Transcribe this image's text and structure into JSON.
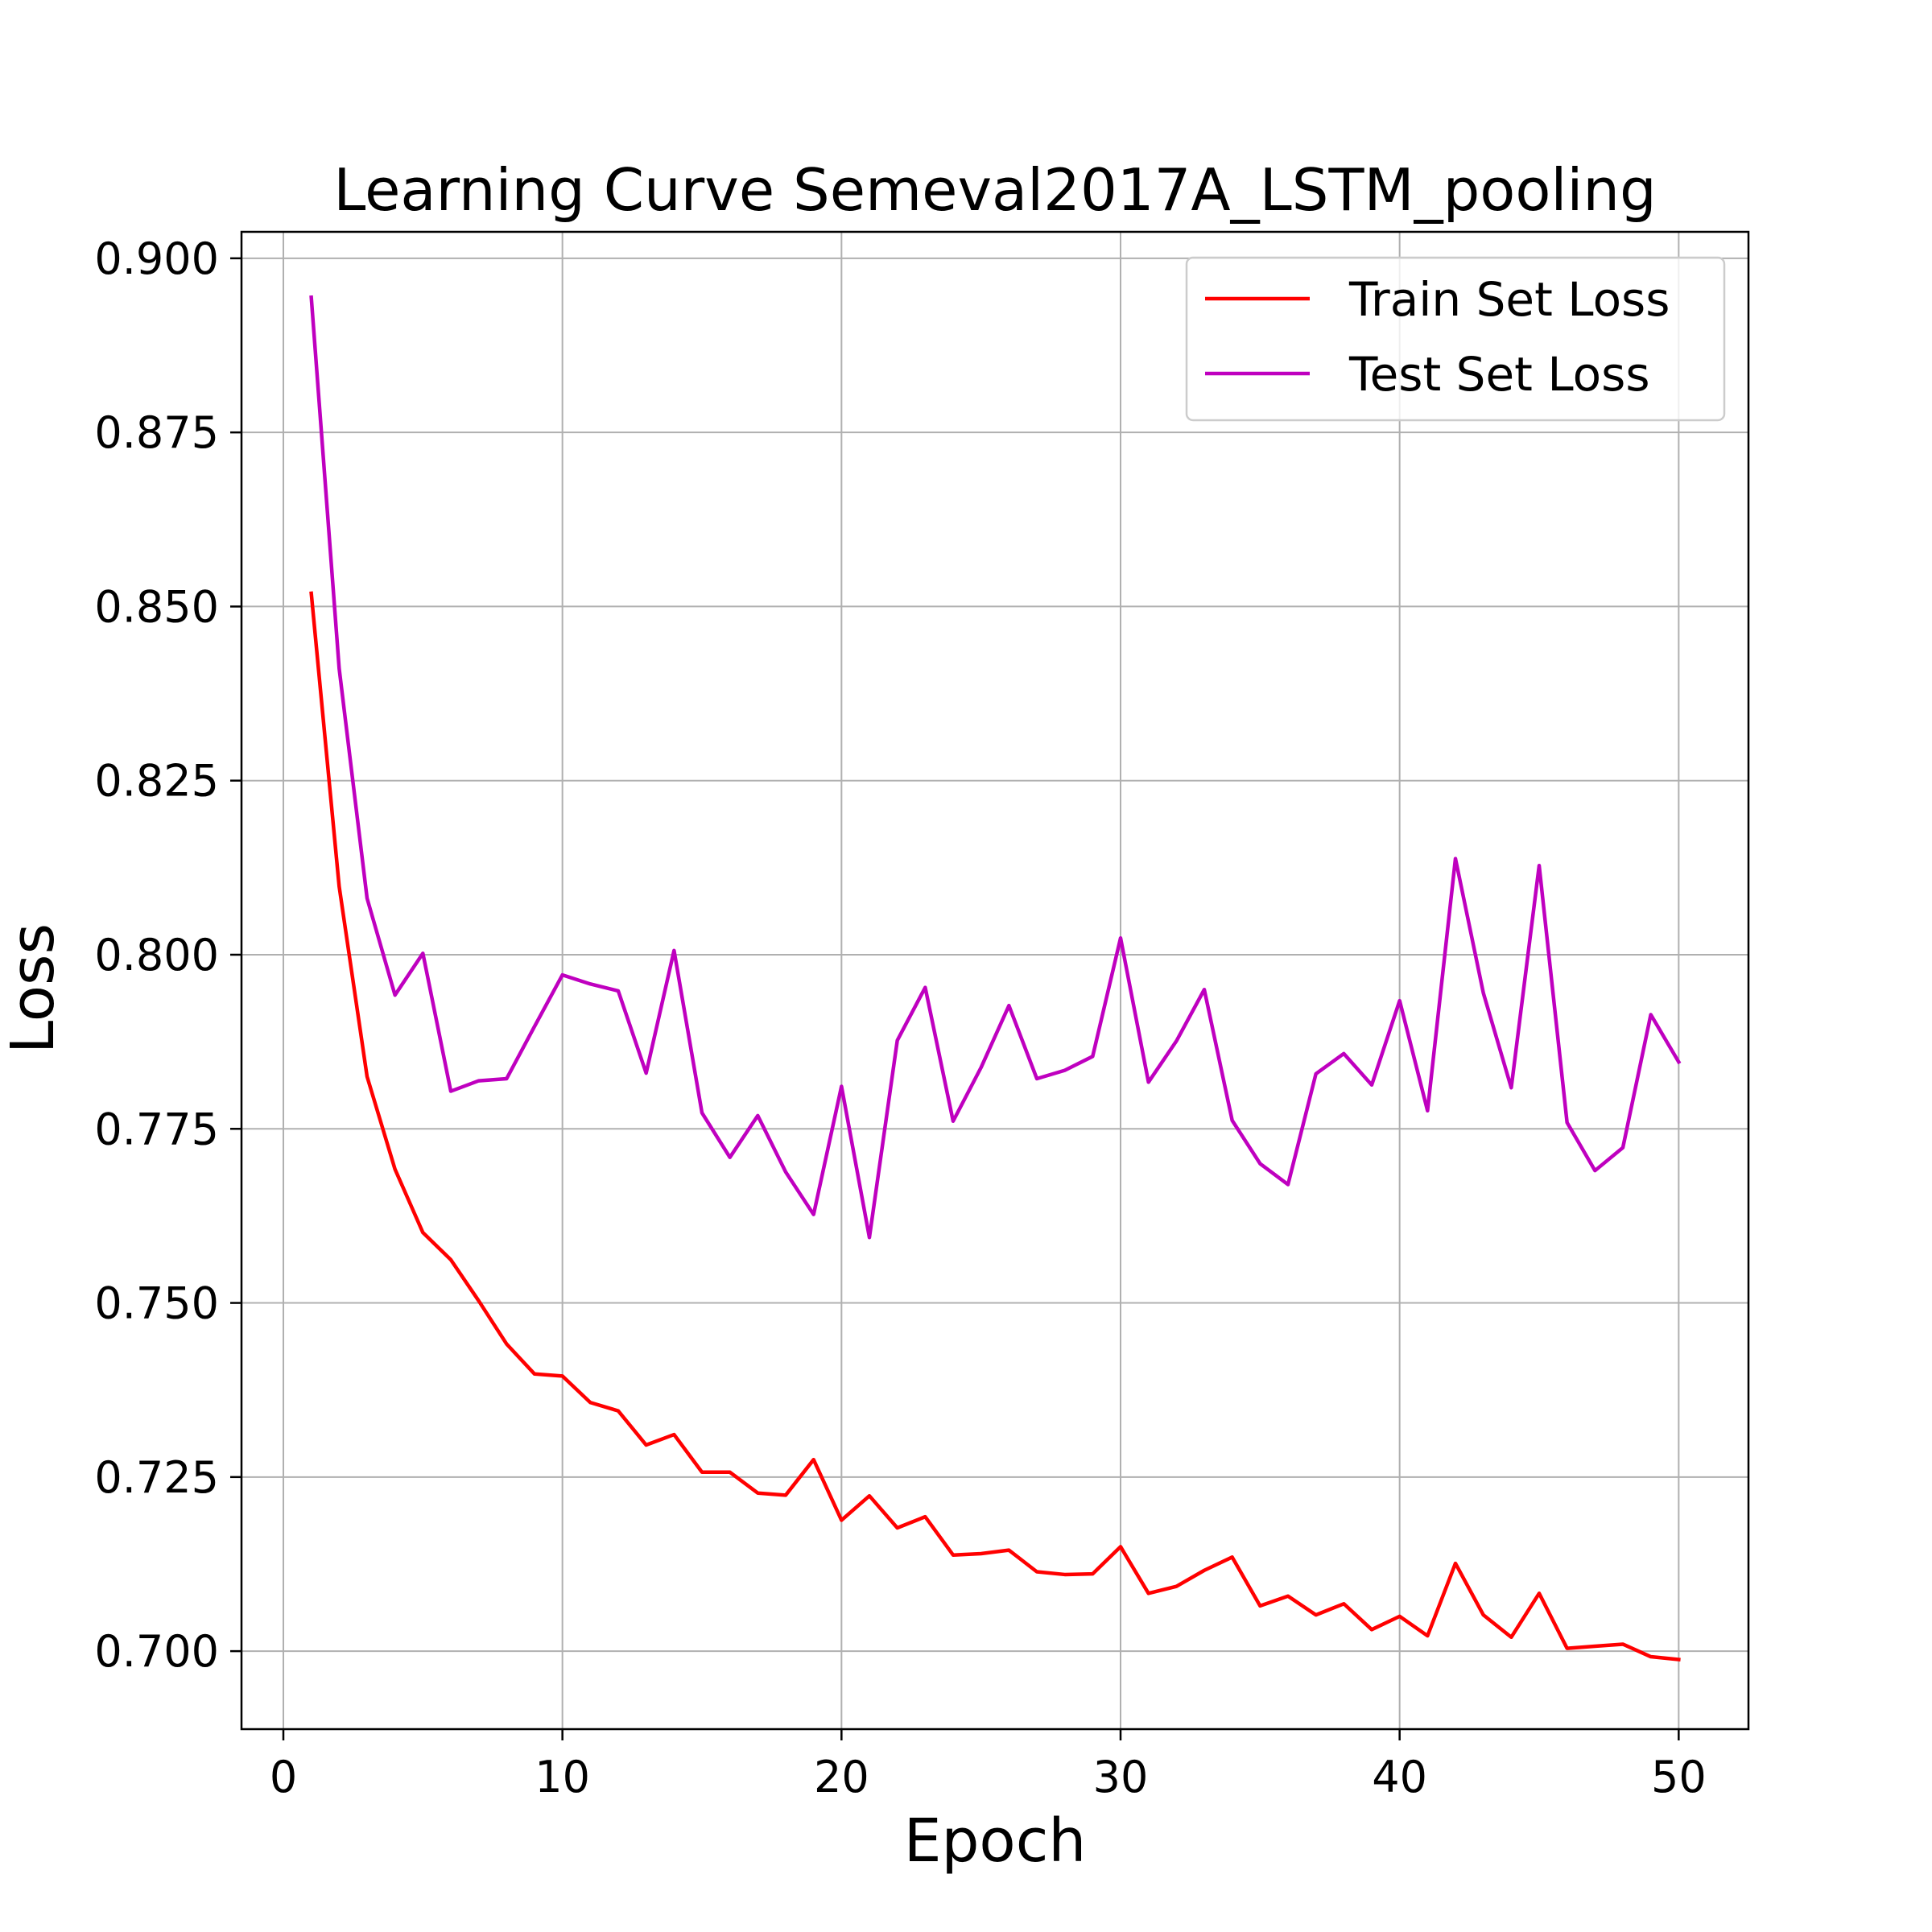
{
  "chart_data": {
    "type": "line",
    "title": "Learning Curve Semeval2017A_LSTM_pooling",
    "xlabel": "Epoch",
    "ylabel": "Loss",
    "xlim": [
      -1.5,
      52.5
    ],
    "ylim": [
      0.6888,
      0.9038
    ],
    "xticks": [
      0,
      10,
      20,
      30,
      40,
      50
    ],
    "yticks": [
      0.7,
      0.725,
      0.75,
      0.775,
      0.8,
      0.825,
      0.85,
      0.875,
      0.9
    ],
    "xtick_labels": [
      "0",
      "10",
      "20",
      "30",
      "40",
      "50"
    ],
    "ytick_labels": [
      "0.700",
      "0.725",
      "0.750",
      "0.775",
      "0.800",
      "0.825",
      "0.850",
      "0.875",
      "0.900"
    ],
    "grid": true,
    "legend_position": "top-right",
    "x": [
      1,
      2,
      3,
      4,
      5,
      6,
      7,
      8,
      9,
      10,
      11,
      12,
      13,
      14,
      15,
      16,
      17,
      18,
      19,
      20,
      21,
      22,
      23,
      24,
      25,
      26,
      27,
      28,
      29,
      30,
      31,
      32,
      33,
      34,
      35,
      36,
      37,
      38,
      39,
      40,
      41,
      42,
      43,
      44,
      45,
      46,
      47,
      48,
      49,
      50
    ],
    "series": [
      {
        "name": "Train Set Loss",
        "color": "#ff0000",
        "values": [
          0.8519,
          0.8098,
          0.7825,
          0.7692,
          0.7601,
          0.7562,
          0.7503,
          0.7441,
          0.7398,
          0.7395,
          0.7357,
          0.7345,
          0.7296,
          0.7311,
          0.7257,
          0.7257,
          0.7227,
          0.7224,
          0.7275,
          0.7188,
          0.7223,
          0.7177,
          0.7193,
          0.7138,
          0.714,
          0.7145,
          0.7114,
          0.711,
          0.7111,
          0.715,
          0.7083,
          0.7093,
          0.7116,
          0.7135,
          0.7065,
          0.7079,
          0.7052,
          0.7068,
          0.7031,
          0.705,
          0.7022,
          0.7126,
          0.7052,
          0.702,
          0.7083,
          0.7004,
          0.7007,
          0.701,
          0.6992,
          0.6988
        ]
      },
      {
        "name": "Test Set Loss",
        "color": "#bf00bf",
        "values": [
          0.8944,
          0.8411,
          0.8081,
          0.7942,
          0.8002,
          0.7804,
          0.7819,
          0.7822,
          0.7897,
          0.7971,
          0.7958,
          0.7948,
          0.783,
          0.8006,
          0.7773,
          0.7709,
          0.7769,
          0.7688,
          0.7627,
          0.7811,
          0.7594,
          0.7877,
          0.7953,
          0.7761,
          0.7838,
          0.7927,
          0.7822,
          0.7834,
          0.7854,
          0.8024,
          0.7817,
          0.7876,
          0.795,
          0.7762,
          0.77,
          0.767,
          0.7829,
          0.7858,
          0.7813,
          0.7934,
          0.7776,
          0.8138,
          0.7945,
          0.7809,
          0.8128,
          0.7759,
          0.769,
          0.7723,
          0.7914,
          0.7846
        ]
      }
    ]
  }
}
